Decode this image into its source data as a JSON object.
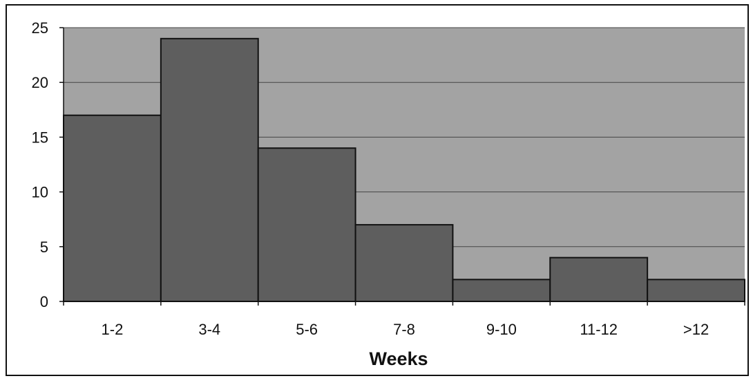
{
  "chart_data": {
    "type": "bar",
    "categories": [
      "1-2",
      "3-4",
      "5-6",
      "7-8",
      "9-10",
      "11-12",
      ">12"
    ],
    "values": [
      17,
      24,
      14,
      7,
      2,
      4,
      2
    ],
    "xlabel": "Weeks",
    "ylabel": "",
    "ylim": [
      0,
      25
    ],
    "yticks": [
      0,
      5,
      10,
      15,
      20,
      25
    ],
    "grid": true,
    "colors": {
      "plot_background": "#a3a3a3",
      "bar_fill": "#5e5e5e",
      "bar_stroke": "#111111",
      "gridline": "#444444"
    }
  }
}
